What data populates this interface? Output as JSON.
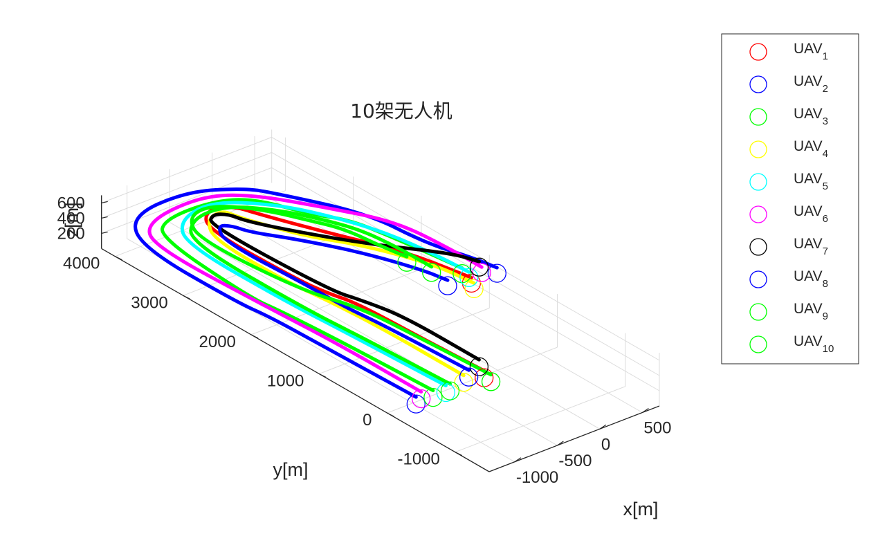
{
  "chart_data": {
    "type": "line",
    "title": "10架无人机",
    "xlabel": "x[m]",
    "ylabel": "y[m]",
    "zlabel": "z[m]",
    "x_ticks": [
      "-1000",
      "-500",
      "0",
      "500"
    ],
    "y_ticks": [
      "-1000",
      "0",
      "1000",
      "2000",
      "3000",
      "4000"
    ],
    "z_ticks": [
      "200",
      "400",
      "600"
    ],
    "xlim": [
      -1300,
      700
    ],
    "ylim": [
      -1500,
      4200
    ],
    "zlim": [
      0,
      700
    ],
    "grid": true,
    "legend_position": "right-outside",
    "legend_label_prefix": "UAV",
    "series": [
      {
        "label_sub": "1",
        "color": "#ff0000",
        "path": [
          [
            -400,
            -300
          ],
          [
            -440,
            600
          ],
          [
            -470,
            1500
          ],
          [
            -550,
            1800
          ],
          [
            -600,
            2200
          ],
          [
            -620,
            3500
          ],
          [
            -400,
            3800
          ],
          [
            -150,
            3700
          ],
          [
            -80,
            3450
          ],
          [
            200,
            2700
          ],
          [
            500,
            2000
          ],
          [
            650,
            1200
          ]
        ]
      },
      {
        "label_sub": "2",
        "color": "#0000ff",
        "path": [
          [
            -1200,
            -300
          ],
          [
            -1230,
            1000
          ],
          [
            -1250,
            1800
          ],
          [
            -1300,
            2200
          ],
          [
            -1300,
            3600
          ],
          [
            -1000,
            4150
          ],
          [
            -300,
            4200
          ],
          [
            150,
            3900
          ],
          [
            300,
            3650
          ],
          [
            700,
            2800
          ],
          [
            750,
            2000
          ],
          [
            900,
            1500
          ],
          [
            950,
            1200
          ]
        ]
      },
      {
        "label_sub": "3",
        "color": "#00ff00",
        "path": [
          [
            -1000,
            -300
          ],
          [
            -1050,
            1000
          ],
          [
            -1100,
            1800
          ],
          [
            -1150,
            2200
          ],
          [
            -1050,
            3650
          ],
          [
            -800,
            3900
          ],
          [
            -250,
            3900
          ],
          [
            80,
            3700
          ],
          [
            300,
            3100
          ],
          [
            500,
            2800
          ],
          [
            600,
            2200
          ],
          [
            700,
            1400
          ]
        ]
      },
      {
        "label_sub": "4",
        "color": "#ffff00",
        "path": [
          [
            -600,
            -250
          ],
          [
            -600,
            1000
          ],
          [
            -650,
            1800
          ],
          [
            -700,
            2200
          ],
          [
            -700,
            3300
          ],
          [
            -500,
            3650
          ],
          [
            -280,
            3700
          ],
          [
            -250,
            3500
          ],
          [
            -150,
            3200
          ],
          [
            0,
            2800
          ],
          [
            300,
            2300
          ],
          [
            550,
            1600
          ],
          [
            600,
            1100
          ]
        ]
      },
      {
        "label_sub": "5",
        "color": "#00ffff",
        "path": [
          [
            -850,
            -300
          ],
          [
            -900,
            1000
          ],
          [
            -950,
            2000
          ],
          [
            -950,
            3400
          ],
          [
            -700,
            3800
          ],
          [
            -250,
            3900
          ],
          [
            150,
            3500
          ],
          [
            400,
            3000
          ],
          [
            600,
            2400
          ],
          [
            680,
            1700
          ],
          [
            700,
            1300
          ]
        ]
      },
      {
        "label_sub": "6",
        "color": "#ff00ff",
        "path": [
          [
            -1100,
            -250
          ],
          [
            -1100,
            1000
          ],
          [
            -1150,
            2000
          ],
          [
            -1200,
            3500
          ],
          [
            -1000,
            3950
          ],
          [
            -300,
            4050
          ],
          [
            100,
            3800
          ],
          [
            500,
            3100
          ],
          [
            800,
            2500
          ],
          [
            850,
            1800
          ],
          [
            850,
            1300
          ]
        ]
      },
      {
        "label_sub": "7",
        "color": "#000000",
        "path": [
          [
            -300,
            -100
          ],
          [
            -300,
            1000
          ],
          [
            -400,
            1500
          ],
          [
            -500,
            1850
          ],
          [
            -550,
            3550
          ],
          [
            -400,
            3700
          ],
          [
            -280,
            3600
          ],
          [
            -250,
            3400
          ],
          [
            0,
            2900
          ],
          [
            350,
            2300
          ],
          [
            800,
            1700
          ],
          [
            900,
            1400
          ]
        ]
      },
      {
        "label_sub": "8",
        "color": "#0000ff",
        "path": [
          [
            -500,
            -200
          ],
          [
            -550,
            1000
          ],
          [
            -600,
            1500
          ],
          [
            -600,
            2000
          ],
          [
            -650,
            3200
          ],
          [
            -500,
            3500
          ],
          [
            -400,
            3400
          ],
          [
            -350,
            3200
          ],
          [
            -100,
            2800
          ],
          [
            200,
            2200
          ],
          [
            400,
            1600
          ],
          [
            450,
            1300
          ]
        ]
      },
      {
        "label_sub": "9",
        "color": "#00ff00",
        "path": [
          [
            -400,
            -400
          ],
          [
            -450,
            600
          ],
          [
            -500,
            1400
          ],
          [
            -700,
            2000
          ],
          [
            -800,
            3400
          ],
          [
            -600,
            3800
          ],
          [
            -300,
            3850
          ],
          [
            0,
            3500
          ],
          [
            200,
            3050
          ],
          [
            350,
            2700
          ],
          [
            400,
            2200
          ],
          [
            450,
            1900
          ]
        ]
      },
      {
        "label_sub": "10",
        "color": "#00ff00",
        "path": [
          [
            -800,
            -300
          ],
          [
            -850,
            900
          ],
          [
            -900,
            1700
          ],
          [
            -900,
            3400
          ],
          [
            -600,
            3750
          ],
          [
            -200,
            3750
          ],
          [
            100,
            3400
          ],
          [
            300,
            3000
          ],
          [
            450,
            2600
          ],
          [
            500,
            2100
          ],
          [
            500,
            1600
          ]
        ]
      }
    ]
  }
}
